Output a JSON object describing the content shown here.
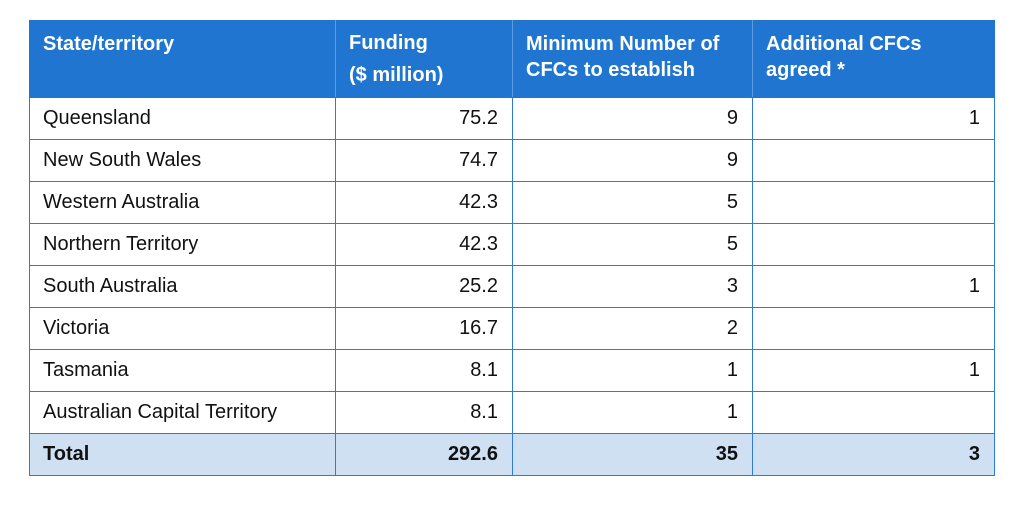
{
  "table": {
    "headers": {
      "state": "State/territory",
      "funding_line1": "Funding",
      "funding_line2": "($ million)",
      "minimum": "Minimum Number of CFCs to establish",
      "additional": "Additional CFCs agreed *"
    },
    "rows": [
      {
        "state": "Queensland",
        "funding": "75.2",
        "minimum": "9",
        "additional": "1"
      },
      {
        "state": "New South Wales",
        "funding": "74.7",
        "minimum": "9",
        "additional": ""
      },
      {
        "state": "Western Australia",
        "funding": "42.3",
        "minimum": "5",
        "additional": ""
      },
      {
        "state": "Northern Territory",
        "funding": "42.3",
        "minimum": "5",
        "additional": ""
      },
      {
        "state": "South Australia",
        "funding": "25.2",
        "minimum": "3",
        "additional": "1"
      },
      {
        "state": "Victoria",
        "funding": "16.7",
        "minimum": "2",
        "additional": ""
      },
      {
        "state": "Tasmania",
        "funding": "8.1",
        "minimum": "1",
        "additional": "1"
      },
      {
        "state": "Australian Capital Territory",
        "funding": "8.1",
        "minimum": "1",
        "additional": ""
      }
    ],
    "total": {
      "label": "Total",
      "funding": "292.6",
      "minimum": "35",
      "additional": "3"
    },
    "colors": {
      "header_background": "#1f75cf",
      "header_text": "#ffffff",
      "grid_lines": "#2d7cd3",
      "total_background": "#cfe0f3"
    }
  }
}
